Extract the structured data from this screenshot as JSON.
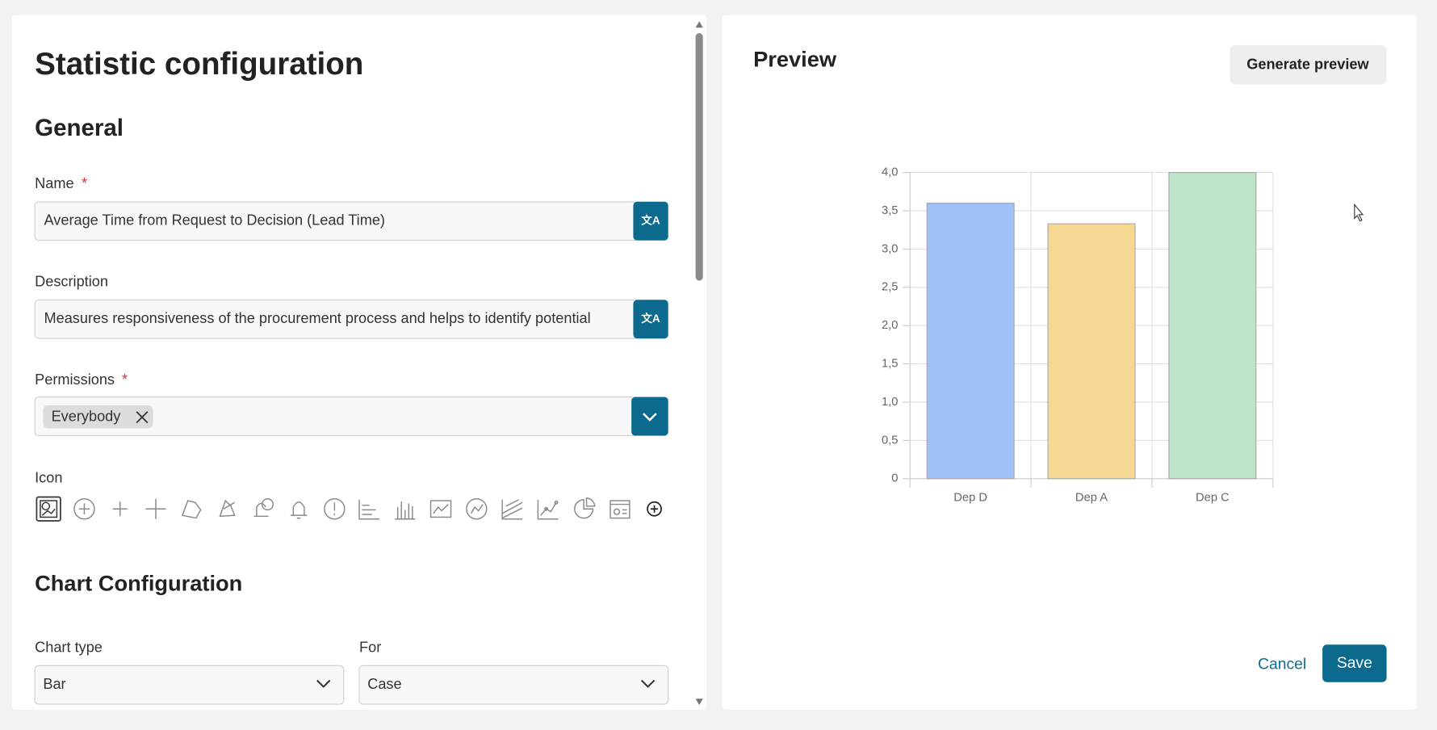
{
  "page": {
    "title": "Statistic configuration"
  },
  "general": {
    "heading": "General",
    "name": {
      "label": "Name",
      "required": "*",
      "value": "Average Time from Request to Decision (Lead Time)"
    },
    "description": {
      "label": "Description",
      "value": "Measures responsiveness of the procurement process and helps to identify potential"
    },
    "permissions": {
      "label": "Permissions",
      "required": "*",
      "chips": [
        "Everybody"
      ]
    },
    "icon": {
      "label": "Icon"
    }
  },
  "chart_configuration": {
    "heading": "Chart Configuration",
    "chart_type": {
      "label": "Chart type",
      "value": "Bar"
    },
    "for": {
      "label": "For",
      "value": "Case"
    }
  },
  "preview": {
    "heading": "Preview",
    "generate_button": "Generate preview"
  },
  "chart_data": {
    "type": "bar",
    "categories": [
      "Dep D",
      "Dep A",
      "Dep C"
    ],
    "values": [
      3.6,
      3.33,
      4.0
    ],
    "colors": [
      "#a0c0f8",
      "#f6d894",
      "#bde3c8"
    ],
    "ylim": [
      0,
      4
    ],
    "yticks": [
      0,
      {
        "value": 0.5,
        "label": "0,5"
      },
      {
        "value": 1,
        "label": "1,0"
      },
      {
        "value": 1.5,
        "label": "1,5"
      },
      {
        "value": 2,
        "label": "2,0"
      },
      {
        "value": 2.5,
        "label": "2,5"
      },
      {
        "value": 3,
        "label": "3,0"
      },
      {
        "value": 3.5,
        "label": "3,5"
      },
      {
        "value": 4,
        "label": "4,0"
      }
    ],
    "grid": true
  },
  "actions": {
    "cancel": "Cancel",
    "save": "Save"
  }
}
